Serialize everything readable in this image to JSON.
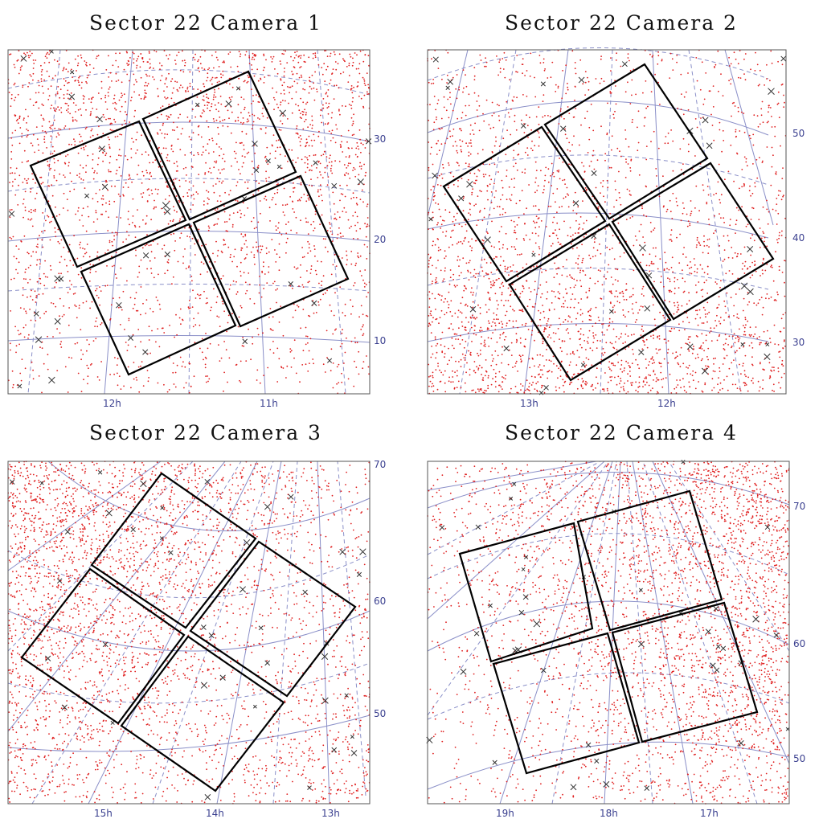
{
  "chart_data": [
    {
      "type": "scatter",
      "title": "Sector 22 Camera 1",
      "ra_ticks": [
        "12h",
        "11h"
      ],
      "dec_ticks": [
        "30",
        "20",
        "10"
      ],
      "ccd_count": 4,
      "marker_colors": {
        "stars": "#e02020",
        "crosses": "#333333"
      }
    },
    {
      "type": "scatter",
      "title": "Sector 22 Camera 2",
      "ra_ticks": [
        "13h",
        "12h"
      ],
      "dec_ticks": [
        "50",
        "40",
        "30"
      ],
      "ccd_count": 4,
      "marker_colors": {
        "stars": "#e02020",
        "crosses": "#333333"
      }
    },
    {
      "type": "scatter",
      "title": "Sector 22 Camera 3",
      "ra_ticks": [
        "15h",
        "14h",
        "13h"
      ],
      "dec_ticks": [
        "70",
        "60",
        "50"
      ],
      "ccd_count": 4,
      "marker_colors": {
        "stars": "#e02020",
        "crosses": "#333333"
      }
    },
    {
      "type": "scatter",
      "title": "Sector 22 Camera 4",
      "ra_ticks": [
        "19h",
        "18h",
        "17h"
      ],
      "dec_ticks": [
        "70",
        "60",
        "50"
      ],
      "ccd_count": 4,
      "marker_colors": {
        "stars": "#e02020",
        "crosses": "#333333"
      }
    }
  ]
}
